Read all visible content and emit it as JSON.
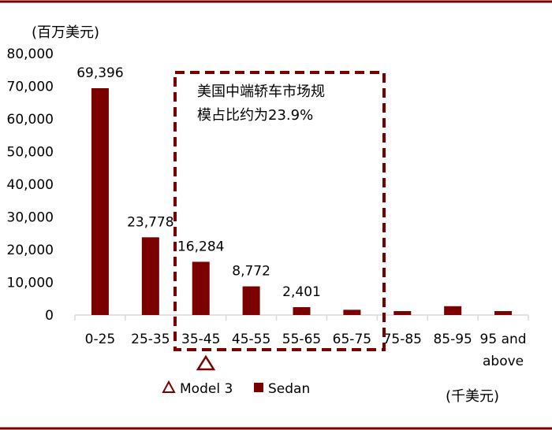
{
  "chart_data": {
    "type": "bar",
    "ylabel": "(百万美元)",
    "xlabel": "(千美元)",
    "categories": [
      "0-25",
      "25-35",
      "35-45",
      "45-55",
      "55-65",
      "65-75",
      "75-85",
      "85-95",
      "95 and above"
    ],
    "values": [
      69396,
      23778,
      16284,
      8772,
      2401,
      1600,
      1200,
      2700,
      1200
    ],
    "data_labels": [
      "69,396",
      "23,778",
      "16,284",
      "8,772",
      "2,401",
      "",
      "",
      "",
      ""
    ],
    "ylim": [
      0,
      80000
    ],
    "yticks": [
      0,
      10000,
      20000,
      30000,
      40000,
      50000,
      60000,
      70000,
      80000
    ],
    "ytick_labels": [
      "0",
      "10,000",
      "20,000",
      "30,000",
      "40,000",
      "50,000",
      "60,000",
      "70,000",
      "80,000"
    ],
    "grid": false,
    "legend_placement": "bottom",
    "legend": [
      {
        "label": "Model 3",
        "marker": "triangle-outline"
      },
      {
        "label": "Sedan",
        "marker": "square"
      }
    ],
    "annotation": {
      "lines": [
        "美国中端轿车市场规",
        "模占比约为23.9%"
      ],
      "category_range": [
        "35-45",
        "65-75"
      ]
    },
    "marker_category": "35-45"
  },
  "colors": {
    "bar": "#7b0000",
    "frame": "#7b0000",
    "axis": "#d9d9d9"
  }
}
